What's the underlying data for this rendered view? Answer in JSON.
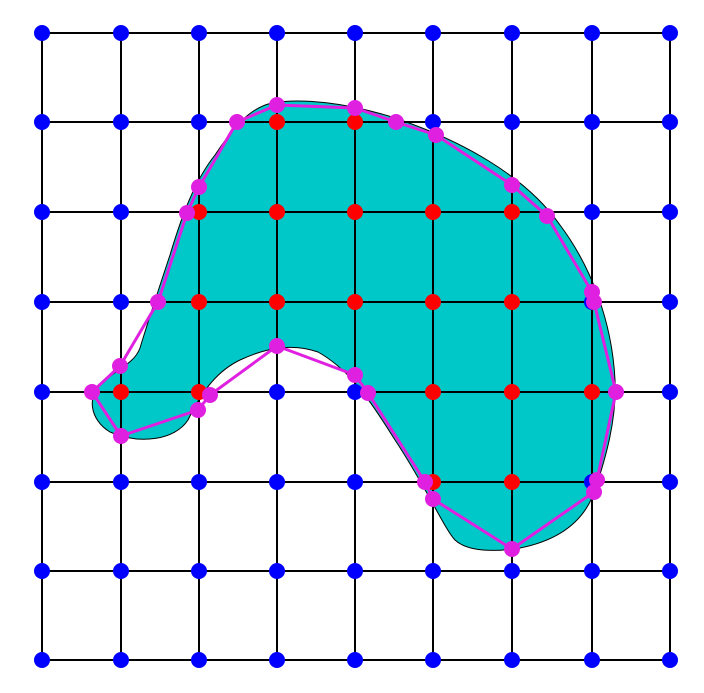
{
  "colors": {
    "background": "#ffffff",
    "grid_line": "#000000",
    "shape_fill": "#00c8c8",
    "shape_outline": "#000000",
    "outside_node": "#0000ff",
    "inside_node": "#ff0000",
    "polygon_line": "#e020e0",
    "polygon_vertex": "#e020e0"
  },
  "grid": {
    "columns": 9,
    "rows": 8
  },
  "inside_nodes": [
    [
      3,
      1
    ],
    [
      4,
      1
    ],
    [
      2,
      2
    ],
    [
      3,
      2
    ],
    [
      4,
      2
    ],
    [
      5,
      2
    ],
    [
      6,
      2
    ],
    [
      2,
      3
    ],
    [
      3,
      3
    ],
    [
      4,
      3
    ],
    [
      5,
      3
    ],
    [
      6,
      3
    ],
    [
      1,
      4
    ],
    [
      2,
      4
    ],
    [
      5,
      4
    ],
    [
      6,
      4
    ],
    [
      7,
      4
    ],
    [
      5,
      5
    ],
    [
      6,
      5
    ]
  ]
}
